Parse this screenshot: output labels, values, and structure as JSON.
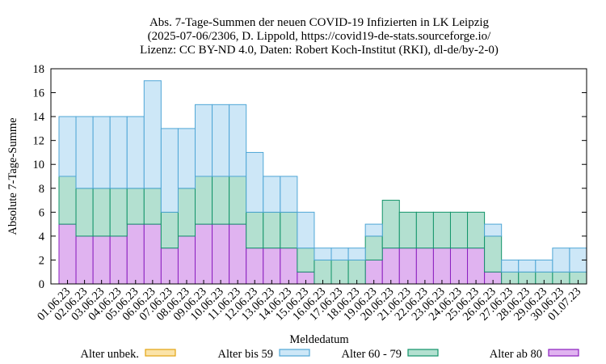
{
  "chart_data": {
    "type": "bar",
    "stacked": true,
    "title_lines": [
      "Abs. 7-Tage-Summen der neuen COVID-19 Infizierten in LK Leipzig",
      "(2025-07-06/2306, D. Lippold, https://covid19-de-stats.sourceforge.io/",
      "Lizenz: CC BY-ND 4.0, Daten: Robert Koch-Institut (RKI), dl-de/by-2-0)"
    ],
    "xlabel": "Meldedatum",
    "ylabel": "Absolute 7-Tage-Summe",
    "ylim": [
      0,
      18
    ],
    "yticks": [
      0,
      2,
      4,
      6,
      8,
      10,
      12,
      14,
      16,
      18
    ],
    "categories": [
      "01.06.23",
      "02.06.23",
      "03.06.23",
      "04.06.23",
      "05.06.23",
      "06.06.23",
      "07.06.23",
      "08.06.23",
      "09.06.23",
      "10.06.23",
      "11.06.23",
      "12.06.23",
      "13.06.23",
      "14.06.23",
      "15.06.23",
      "16.06.23",
      "17.06.23",
      "18.06.23",
      "19.06.23",
      "20.06.23",
      "21.06.23",
      "22.06.23",
      "23.06.23",
      "24.06.23",
      "25.06.23",
      "26.06.23",
      "27.06.23",
      "28.06.23",
      "29.06.23",
      "30.06.23",
      "01.07.23"
    ],
    "series": [
      {
        "name": "Alter ab 80",
        "color": "#e0b3f0",
        "edge": "#8b1fbf",
        "values": [
          5,
          4,
          4,
          4,
          5,
          5,
          3,
          4,
          5,
          5,
          5,
          3,
          3,
          3,
          1,
          0,
          0,
          0,
          2,
          3,
          3,
          3,
          3,
          3,
          3,
          1,
          0,
          0,
          0,
          0,
          0
        ]
      },
      {
        "name": "Alter 60 - 79",
        "color": "#b3e0d0",
        "edge": "#13946a",
        "values": [
          4,
          4,
          4,
          4,
          3,
          3,
          3,
          4,
          4,
          4,
          4,
          3,
          3,
          3,
          2,
          2,
          2,
          2,
          2,
          4,
          3,
          3,
          3,
          3,
          3,
          3,
          1,
          1,
          1,
          1,
          1
        ]
      },
      {
        "name": "Alter bis 59",
        "color": "#cde7f7",
        "edge": "#4fa6d6",
        "values": [
          5,
          6,
          6,
          6,
          6,
          9,
          7,
          5,
          6,
          6,
          6,
          5,
          3,
          3,
          3,
          1,
          1,
          1,
          1,
          0,
          0,
          0,
          0,
          0,
          0,
          1,
          1,
          1,
          1,
          2,
          2
        ]
      },
      {
        "name": "Alter unbek.",
        "color": "#fbe3a8",
        "edge": "#e3a413",
        "values": [
          0,
          0,
          0,
          0,
          0,
          0,
          0,
          0,
          0,
          0,
          0,
          0,
          0,
          0,
          0,
          0,
          0,
          0,
          0,
          0,
          0,
          0,
          0,
          0,
          0,
          0,
          0,
          0,
          0,
          0,
          0
        ]
      }
    ],
    "legend": [
      {
        "label": "Alter unbek.",
        "color": "#fbe3a8",
        "edge": "#e3a413"
      },
      {
        "label": "Alter bis 59",
        "color": "#cde7f7",
        "edge": "#4fa6d6"
      },
      {
        "label": "Alter 60 - 79",
        "color": "#b3e0d0",
        "edge": "#13946a"
      },
      {
        "label": "Alter ab 80",
        "color": "#e0b3f0",
        "edge": "#8b1fbf"
      }
    ],
    "legend_position": "bottom",
    "grid": false
  }
}
